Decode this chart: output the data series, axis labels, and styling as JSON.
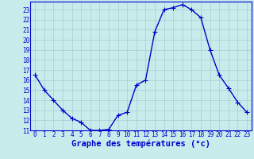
{
  "hours": [
    0,
    1,
    2,
    3,
    4,
    5,
    6,
    7,
    8,
    9,
    10,
    11,
    12,
    13,
    14,
    15,
    16,
    17,
    18,
    19,
    20,
    21,
    22,
    23
  ],
  "temperatures": [
    16.5,
    15.0,
    14.0,
    13.0,
    12.2,
    11.8,
    11.0,
    11.0,
    11.1,
    12.5,
    12.8,
    15.5,
    16.0,
    20.8,
    23.0,
    23.2,
    23.5,
    23.0,
    22.2,
    19.0,
    16.5,
    15.2,
    13.8,
    12.8
  ],
  "line_color": "#0000cc",
  "marker": "+",
  "marker_size": 4,
  "marker_linewidth": 0.8,
  "bg_color": "#c8ecec",
  "grid_color": "#a8ccd0",
  "title": "Graphe des températures (°c)",
  "ylim": [
    11,
    23.8
  ],
  "xlim": [
    -0.5,
    23.5
  ],
  "yticks": [
    11,
    12,
    13,
    14,
    15,
    16,
    17,
    18,
    19,
    20,
    21,
    22,
    23
  ],
  "xticks": [
    0,
    1,
    2,
    3,
    4,
    5,
    6,
    7,
    8,
    9,
    10,
    11,
    12,
    13,
    14,
    15,
    16,
    17,
    18,
    19,
    20,
    21,
    22,
    23
  ],
  "axis_color": "#0000cc",
  "label_color": "#0000cc",
  "tick_fontsize": 5.5,
  "label_fontsize": 7.5,
  "linewidth": 1.0
}
